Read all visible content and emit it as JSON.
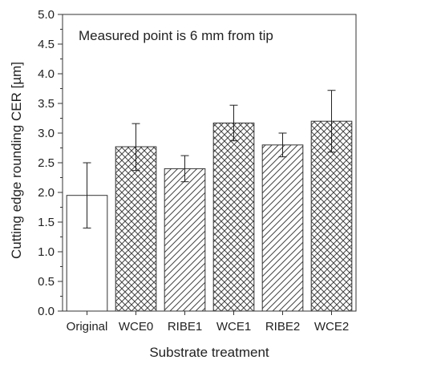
{
  "chart_data": {
    "type": "bar",
    "categories": [
      "Original",
      "WCE0",
      "RIBE1",
      "WCE1",
      "RIBE2",
      "WCE2"
    ],
    "values": [
      1.95,
      2.77,
      2.4,
      3.17,
      2.8,
      3.2
    ],
    "error_low": [
      1.4,
      2.37,
      2.18,
      2.87,
      2.6,
      2.68
    ],
    "error_high": [
      2.5,
      3.16,
      2.62,
      3.47,
      3.0,
      3.72
    ],
    "patterns": [
      "none",
      "crosshatch",
      "diagonal",
      "crosshatch",
      "diagonal",
      "crosshatch"
    ],
    "xlabel": "Substrate treatment",
    "ylabel": "Cutting edge rounding CER [µm]",
    "ylim": [
      0,
      5.0
    ],
    "yticks": [
      "0.0",
      "0.5",
      "1.0",
      "1.5",
      "2.0",
      "2.5",
      "3.0",
      "3.5",
      "4.0",
      "4.5",
      "5.0"
    ],
    "annotation": "Measured point is 6 mm from tip",
    "grid": false,
    "colors": {
      "bar_fill": "#ffffff",
      "bar_stroke": "#333333",
      "hatch": "#444444",
      "axis": "#333333"
    }
  }
}
